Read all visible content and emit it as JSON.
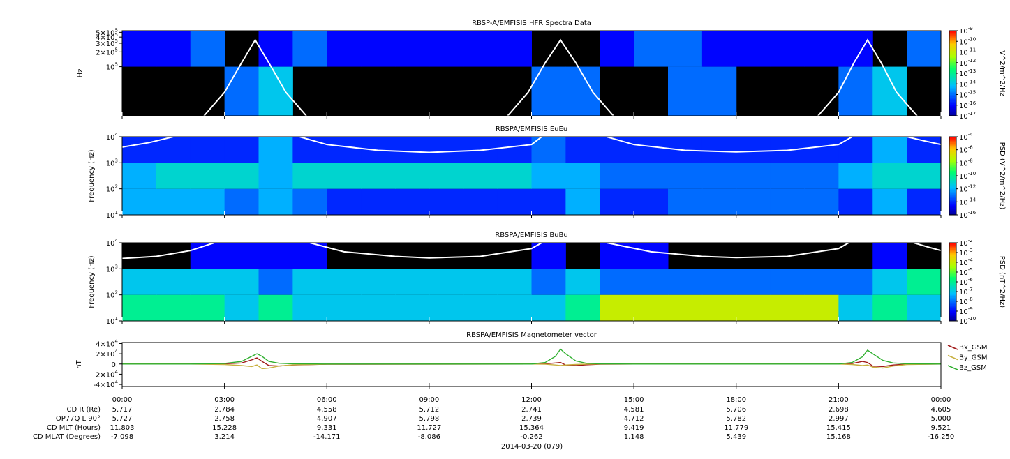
{
  "chart_data": [
    {
      "type": "heatmap",
      "title": "RBSP-A/EMFISIS  HFR Spectra Data",
      "ylabel": "Hz",
      "zlabel": "V^2/m^2/Hz",
      "log_y": true,
      "xlim": [
        0,
        24
      ],
      "xticks": [
        0,
        3,
        6,
        9,
        12,
        15,
        18,
        21,
        24
      ],
      "ylim": [
        10000,
        540000
      ],
      "yticks": [
        {
          "value": 100000,
          "label": "10",
          "sup": "5"
        },
        {
          "value": 200000,
          "label": "2×10",
          "sup": "5"
        },
        {
          "value": 300000,
          "label": "3×10",
          "sup": "5"
        },
        {
          "value": 400000,
          "label": "4×10",
          "sup": "5"
        },
        {
          "value": 500000,
          "label": "5×10",
          "sup": "5"
        }
      ],
      "zlim": [
        1e-17,
        1e-09
      ],
      "zticks": [
        {
          "value": 1e-09,
          "label": "10",
          "sup": "-9"
        },
        {
          "value": 1e-10,
          "label": "10",
          "sup": "-10"
        },
        {
          "value": 1e-11,
          "label": "10",
          "sup": "-11"
        },
        {
          "value": 1e-12,
          "label": "10",
          "sup": "-12"
        },
        {
          "value": 1e-13,
          "label": "10",
          "sup": "-13"
        },
        {
          "value": 1e-14,
          "label": "10",
          "sup": "-14"
        },
        {
          "value": 1e-15,
          "label": "10",
          "sup": "-15"
        },
        {
          "value": 1e-16,
          "label": "10",
          "sup": "-16"
        },
        {
          "value": 1e-17,
          "label": "10",
          "sup": "-17"
        }
      ],
      "x_edges": [
        0,
        1,
        2,
        3,
        4,
        5,
        6,
        7,
        8,
        9,
        10,
        11,
        12,
        13,
        14,
        15,
        16,
        17,
        18,
        19,
        20,
        21,
        22,
        23,
        24
      ],
      "y_edges": [
        10000,
        100000,
        540000
      ],
      "z": [
        [
          null,
          null,
          null,
          1e-15,
          1e-14,
          null,
          null,
          null,
          null,
          null,
          null,
          null,
          1e-15,
          1e-15,
          null,
          null,
          1e-15,
          1e-15,
          null,
          null,
          null,
          1e-15,
          1e-14,
          null
        ],
        [
          1e-16,
          1e-16,
          1e-15,
          null,
          1e-16,
          1e-15,
          1e-16,
          1e-16,
          1e-16,
          1e-16,
          1e-16,
          1e-16,
          null,
          null,
          1e-16,
          1e-15,
          1e-15,
          1e-16,
          1e-16,
          1e-16,
          1e-16,
          1e-16,
          null,
          1e-15
        ]
      ],
      "series": [
        {
          "color": "#ffffff",
          "x": [
            2.4,
            3.0,
            3.5,
            3.9,
            4.3,
            4.8,
            5.4,
            5.5,
            11.3,
            11.9,
            12.4,
            12.85,
            13.3,
            13.8,
            14.4,
            14.5,
            20.4,
            21.0,
            21.45,
            21.85,
            22.25,
            22.7,
            23.3
          ],
          "values": [
            10000,
            30000,
            120000,
            350000,
            120000,
            30000,
            10000,
            null,
            10000,
            30000,
            120000,
            350000,
            120000,
            30000,
            10000,
            null,
            10000,
            30000,
            120000,
            350000,
            120000,
            30000,
            10000
          ]
        }
      ]
    },
    {
      "type": "heatmap",
      "title": "RBSPA/EMFISIS  EuEu",
      "ylabel": "Frequency (Hz)",
      "zlabel": "PSD (V^2/m^2/Hz)",
      "log_y": true,
      "xlim": [
        0,
        24
      ],
      "xticks": [
        0,
        3,
        6,
        9,
        12,
        15,
        18,
        21,
        24
      ],
      "ylim": [
        10,
        10000
      ],
      "yticks": [
        {
          "value": 10,
          "label": "10",
          "sup": "1"
        },
        {
          "value": 100,
          "label": "10",
          "sup": "2"
        },
        {
          "value": 1000,
          "label": "10",
          "sup": "3"
        },
        {
          "value": 10000,
          "label": "10",
          "sup": "4"
        }
      ],
      "zlim": [
        1e-16,
        0.0001
      ],
      "zticks": [
        {
          "value": 0.0001,
          "label": "10",
          "sup": "-4"
        },
        {
          "value": 1e-06,
          "label": "10",
          "sup": "-6"
        },
        {
          "value": 1e-08,
          "label": "10",
          "sup": "-8"
        },
        {
          "value": 1e-10,
          "label": "10",
          "sup": "-10"
        },
        {
          "value": 1e-12,
          "label": "10",
          "sup": "-12"
        },
        {
          "value": 1e-14,
          "label": "10",
          "sup": "-14"
        },
        {
          "value": 1e-16,
          "label": "10",
          "sup": "-16"
        }
      ],
      "x_edges": [
        0,
        1,
        2,
        3,
        4,
        5,
        6,
        7,
        8,
        9,
        10,
        11,
        12,
        13,
        14,
        15,
        16,
        17,
        18,
        19,
        20,
        21,
        22,
        23,
        24
      ],
      "y_edges": [
        10,
        100,
        1000,
        10000
      ],
      "z": [
        [
          1e-12,
          1e-12,
          1e-12,
          1e-13,
          1e-12,
          1e-13,
          1e-14,
          1e-14,
          1e-14,
          1e-14,
          1e-14,
          1e-14,
          1e-14,
          1e-12,
          1e-14,
          1e-14,
          1e-13,
          1e-13,
          1e-13,
          1e-13,
          1e-13,
          1e-14,
          1e-12,
          1e-14
        ],
        [
          1e-12,
          1e-11,
          1e-11,
          1e-11,
          1e-12,
          1e-11,
          1e-11,
          1e-11,
          1e-11,
          1e-11,
          1e-11,
          1e-11,
          1e-12,
          1e-12,
          1e-13,
          1e-13,
          1e-13,
          1e-13,
          1e-13,
          1e-13,
          1e-13,
          1e-12,
          1e-11,
          1e-11
        ],
        [
          1e-14,
          1e-14,
          1e-14,
          1e-14,
          1e-12,
          1e-14,
          1e-14,
          1e-14,
          1e-14,
          1e-14,
          1e-14,
          1e-14,
          1e-13,
          1e-14,
          1e-14,
          1e-14,
          1e-14,
          1e-14,
          1e-14,
          1e-14,
          1e-14,
          1e-14,
          1e-12,
          1e-14
        ]
      ],
      "series": [
        {
          "color": "#ffffff",
          "x": [
            0,
            0.8,
            1.5,
            2,
            5.2,
            6,
            7.5,
            9,
            10.5,
            12,
            12.3,
            13,
            14.2,
            15,
            16.5,
            18,
            19.5,
            21,
            21.4,
            22,
            23,
            23.5,
            24
          ],
          "values": [
            4000,
            6000,
            10000,
            null,
            10000,
            5000,
            3000,
            2500,
            3000,
            5000,
            10000,
            null,
            10000,
            5000,
            3000,
            2600,
            3000,
            5000,
            10000,
            null,
            10000,
            7000,
            5000
          ]
        }
      ]
    },
    {
      "type": "heatmap",
      "title": "RBSPA/EMFISIS  BuBu",
      "ylabel": "Frequency (Hz)",
      "zlabel": "PSD (nT^2/Hz)",
      "log_y": true,
      "xlim": [
        0,
        24
      ],
      "xticks": [
        0,
        3,
        6,
        9,
        12,
        15,
        18,
        21,
        24
      ],
      "ylim": [
        10,
        10000
      ],
      "yticks": [
        {
          "value": 10,
          "label": "10",
          "sup": "1"
        },
        {
          "value": 100,
          "label": "10",
          "sup": "2"
        },
        {
          "value": 1000,
          "label": "10",
          "sup": "3"
        },
        {
          "value": 10000,
          "label": "10",
          "sup": "4"
        }
      ],
      "zlim": [
        1e-10,
        0.01
      ],
      "zticks": [
        {
          "value": 0.01,
          "label": "10",
          "sup": "-2"
        },
        {
          "value": 0.001,
          "label": "10",
          "sup": "-3"
        },
        {
          "value": 0.0001,
          "label": "10",
          "sup": "-4"
        },
        {
          "value": 1e-05,
          "label": "10",
          "sup": "-5"
        },
        {
          "value": 1e-06,
          "label": "10",
          "sup": "-6"
        },
        {
          "value": 1e-07,
          "label": "10",
          "sup": "-7"
        },
        {
          "value": 1e-08,
          "label": "10",
          "sup": "-8"
        },
        {
          "value": 1e-09,
          "label": "10",
          "sup": "-9"
        },
        {
          "value": 1e-10,
          "label": "10",
          "sup": "-10"
        }
      ],
      "x_edges": [
        0,
        1,
        2,
        3,
        4,
        5,
        6,
        7,
        8,
        9,
        10,
        11,
        12,
        13,
        14,
        15,
        16,
        17,
        18,
        19,
        20,
        21,
        22,
        23,
        24
      ],
      "y_edges": [
        10,
        100,
        1000,
        10000
      ],
      "z": [
        [
          1e-06,
          1e-06,
          1e-06,
          1e-07,
          1e-06,
          1e-07,
          1e-07,
          1e-07,
          1e-07,
          1e-07,
          1e-07,
          1e-07,
          1e-07,
          1e-06,
          0.0001,
          0.0001,
          0.0001,
          0.0001,
          0.0001,
          0.0001,
          0.0001,
          1e-07,
          1e-06,
          1e-07
        ],
        [
          1e-07,
          1e-07,
          1e-07,
          1e-07,
          1e-08,
          1e-07,
          1e-07,
          1e-07,
          1e-07,
          1e-07,
          1e-07,
          1e-07,
          1e-08,
          1e-07,
          1e-08,
          1e-08,
          1e-08,
          1e-08,
          1e-08,
          1e-08,
          1e-08,
          1e-08,
          1e-07,
          1e-06
        ],
        [
          null,
          null,
          1e-09,
          1e-09,
          1e-09,
          1e-09,
          null,
          null,
          null,
          null,
          null,
          null,
          1e-09,
          null,
          1e-09,
          1e-09,
          null,
          null,
          null,
          null,
          null,
          null,
          1e-09,
          null
        ]
      ],
      "series": [
        {
          "color": "#ffffff",
          "x": [
            0,
            1,
            2,
            2.7,
            3.5,
            5.5,
            6.5,
            8,
            9,
            10.5,
            12,
            12.3,
            13,
            14.2,
            15.5,
            17,
            18,
            19.5,
            21,
            21.3,
            22,
            23.2,
            23.6,
            24
          ],
          "values": [
            2500,
            3000,
            5000,
            10000,
            null,
            10000,
            4500,
            3000,
            2600,
            3000,
            6000,
            10000,
            null,
            10000,
            4500,
            3000,
            2700,
            3000,
            6000,
            10000,
            null,
            10000,
            7000,
            5000
          ]
        }
      ]
    },
    {
      "type": "line",
      "title": "RBSPA/EMFISIS  Magnetometer vector",
      "ylabel": "nT",
      "xlim": [
        0,
        24
      ],
      "xticks": [
        {
          "value": 0,
          "label": "00:00"
        },
        {
          "value": 3,
          "label": "03:00"
        },
        {
          "value": 6,
          "label": "06:00"
        },
        {
          "value": 9,
          "label": "09:00"
        },
        {
          "value": 12,
          "label": "12:00"
        },
        {
          "value": 15,
          "label": "15:00"
        },
        {
          "value": 18,
          "label": "18:00"
        },
        {
          "value": 21,
          "label": "21:00"
        },
        {
          "value": 24,
          "label": "00:00"
        }
      ],
      "ylim": [
        -44000,
        42000
      ],
      "yticks": [
        {
          "value": 40000,
          "label": "4×10",
          "sup": "4"
        },
        {
          "value": 20000,
          "label": "2×10",
          "sup": "4"
        },
        {
          "value": 0,
          "label": "0."
        },
        {
          "value": -20000,
          "label": "-2×10",
          "sup": "4"
        },
        {
          "value": -40000,
          "label": "-4×10",
          "sup": "4"
        }
      ],
      "x": [
        0,
        2,
        3,
        3.5,
        3.8,
        3.95,
        4.1,
        4.3,
        4.6,
        5,
        6,
        12,
        12.4,
        12.7,
        12.85,
        13,
        13.3,
        13.6,
        14,
        15,
        21,
        21.4,
        21.7,
        21.85,
        22,
        22.3,
        22.6,
        23,
        24
      ],
      "series": [
        {
          "name": "Bx_GSM",
          "color": "#a01818",
          "values": [
            0,
            0,
            500,
            2000,
            8000,
            12000,
            5000,
            -3000,
            -4000,
            -2000,
            -500,
            0,
            500,
            2000,
            3000,
            -2000,
            -3000,
            -1500,
            -300,
            0,
            0,
            1000,
            5000,
            3000,
            -4000,
            -5000,
            -2000,
            -500,
            0
          ]
        },
        {
          "name": "By_GSM",
          "color": "#c8b040",
          "values": [
            0,
            0,
            -1000,
            -3000,
            -5000,
            -2000,
            -9000,
            -8000,
            -4000,
            -1500,
            -300,
            0,
            -500,
            -2000,
            -3000,
            -2000,
            -1000,
            -300,
            0,
            0,
            0,
            -1000,
            -3000,
            -2000,
            -6000,
            -8000,
            -4000,
            -1000,
            0
          ]
        },
        {
          "name": "Bz_GSM",
          "color": "#30b030",
          "values": [
            0,
            0,
            1000,
            5000,
            15000,
            20000,
            15000,
            5000,
            1500,
            500,
            0,
            0,
            3000,
            15000,
            29000,
            20000,
            6000,
            1500,
            300,
            0,
            0,
            3000,
            14000,
            27000,
            20000,
            7000,
            2000,
            500,
            0
          ]
        }
      ]
    }
  ],
  "ephemeris": {
    "rows": [
      {
        "label": "CD R (Re)",
        "values": [
          "5.717",
          "2.784",
          "4.558",
          "5.712",
          "2.741",
          "4.581",
          "5.706",
          "2.698",
          "4.605"
        ]
      },
      {
        "label": "OP77Q L 90°",
        "values": [
          "5.727",
          "2.758",
          "4.907",
          "5.798",
          "2.739",
          "4.712",
          "5.782",
          "2.997",
          "5.000"
        ]
      },
      {
        "label": "CD MLT (Hours)",
        "values": [
          "11.803",
          "15.228",
          "9.331",
          "11.727",
          "15.364",
          "9.419",
          "11.779",
          "15.415",
          "9.521"
        ]
      },
      {
        "label": "CD MLAT (Degrees)",
        "values": [
          "-7.098",
          "3.214",
          "-14.171",
          "-8.086",
          "-0.262",
          "1.148",
          "5.439",
          "15.168",
          "-16.250"
        ]
      }
    ]
  },
  "date": "2014-03-20 (079)"
}
